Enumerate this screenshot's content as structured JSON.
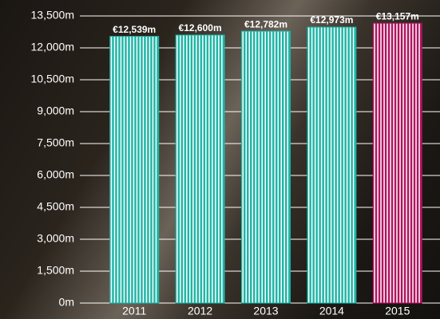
{
  "chart_data": {
    "type": "bar",
    "categories": [
      "2011",
      "2012",
      "2013",
      "2014",
      "2015"
    ],
    "values": [
      12539,
      12600,
      12782,
      12973,
      13157
    ],
    "value_labels": [
      "€12,539m",
      "€12,600m",
      "€12,782m",
      "€12,973m",
      "€13,157m"
    ],
    "colors": [
      "#1fb5a6",
      "#1fb5a6",
      "#1fb5a6",
      "#1fb5a6",
      "#b0135f"
    ],
    "ylim": [
      0,
      13500
    ],
    "yticks": [
      {
        "value": 0,
        "label": "0m"
      },
      {
        "value": 1500,
        "label": "1,500m"
      },
      {
        "value": 3000,
        "label": "3,000m"
      },
      {
        "value": 4500,
        "label": "4,500m"
      },
      {
        "value": 6000,
        "label": "6,000m"
      },
      {
        "value": 7500,
        "label": "7,500m"
      },
      {
        "value": 9000,
        "label": "9,000m"
      },
      {
        "value": 10500,
        "label": "10,500m"
      },
      {
        "value": 12000,
        "label": "12,000m"
      },
      {
        "value": 13500,
        "label": "13,500m"
      }
    ],
    "grid": true
  }
}
